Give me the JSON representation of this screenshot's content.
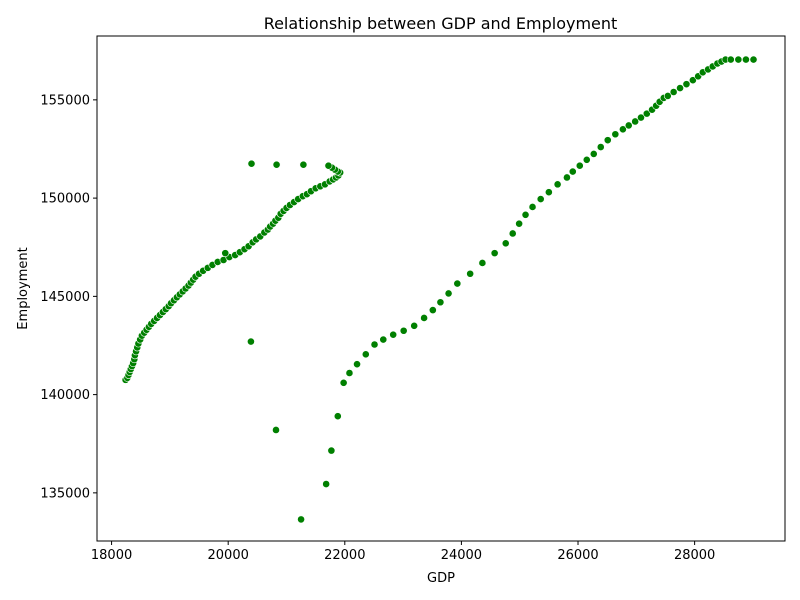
{
  "chart_data": {
    "type": "scatter",
    "title": "Relationship between GDP and Employment",
    "xlabel": "GDP",
    "ylabel": "Employment",
    "xlim": [
      17750,
      29550
    ],
    "ylim": [
      132550,
      158250
    ],
    "xticks": [
      18000,
      20000,
      22000,
      24000,
      26000,
      28000
    ],
    "xtick_labels": [
      "18000",
      "20000",
      "22000",
      "24000",
      "26000",
      "28000"
    ],
    "yticks": [
      135000,
      140000,
      145000,
      150000,
      155000
    ],
    "ytick_labels": [
      "135000",
      "140000",
      "145000",
      "150000",
      "155000"
    ],
    "grid": false,
    "marker_color": "#008000",
    "points": [
      [
        18240,
        140750
      ],
      [
        18270,
        140850
      ],
      [
        18290,
        141000
      ],
      [
        18310,
        141150
      ],
      [
        18330,
        141300
      ],
      [
        18350,
        141450
      ],
      [
        18370,
        141600
      ],
      [
        18390,
        141800
      ],
      [
        18400,
        142000
      ],
      [
        18420,
        142200
      ],
      [
        18440,
        142400
      ],
      [
        18460,
        142600
      ],
      [
        18490,
        142800
      ],
      [
        18520,
        143000
      ],
      [
        18560,
        143150
      ],
      [
        18600,
        143300
      ],
      [
        18640,
        143450
      ],
      [
        18680,
        143600
      ],
      [
        18730,
        143750
      ],
      [
        18780,
        143900
      ],
      [
        18830,
        144050
      ],
      [
        18880,
        144200
      ],
      [
        18930,
        144350
      ],
      [
        18980,
        144500
      ],
      [
        19020,
        144650
      ],
      [
        19070,
        144800
      ],
      [
        19120,
        144950
      ],
      [
        19170,
        145100
      ],
      [
        19220,
        145250
      ],
      [
        19270,
        145400
      ],
      [
        19320,
        145550
      ],
      [
        19360,
        145700
      ],
      [
        19400,
        145850
      ],
      [
        19440,
        146000
      ],
      [
        19500,
        146150
      ],
      [
        19570,
        146300
      ],
      [
        19650,
        146450
      ],
      [
        19730,
        146600
      ],
      [
        19820,
        146750
      ],
      [
        19920,
        146850
      ],
      [
        20020,
        147000
      ],
      [
        20120,
        147100
      ],
      [
        20200,
        147250
      ],
      [
        20280,
        147400
      ],
      [
        20350,
        147550
      ],
      [
        20420,
        147750
      ],
      [
        20480,
        147900
      ],
      [
        20550,
        148050
      ],
      [
        20620,
        148250
      ],
      [
        20680,
        148400
      ],
      [
        20720,
        148550
      ],
      [
        20770,
        148700
      ],
      [
        20810,
        148850
      ],
      [
        20860,
        149000
      ],
      [
        20900,
        149200
      ],
      [
        20950,
        149350
      ],
      [
        21000,
        149500
      ],
      [
        21060,
        149650
      ],
      [
        21130,
        149800
      ],
      [
        21200,
        149950
      ],
      [
        21280,
        150100
      ],
      [
        21350,
        150200
      ],
      [
        21420,
        150350
      ],
      [
        21500,
        150500
      ],
      [
        21580,
        150600
      ],
      [
        21660,
        150700
      ],
      [
        21740,
        150850
      ],
      [
        21800,
        150950
      ],
      [
        21850,
        151050
      ],
      [
        21890,
        151150
      ],
      [
        21920,
        151300
      ],
      [
        21880,
        151350
      ],
      [
        21830,
        151450
      ],
      [
        21780,
        151550
      ],
      [
        19950,
        147200
      ],
      [
        20400,
        151750
      ],
      [
        20830,
        151700
      ],
      [
        21290,
        151700
      ],
      [
        21720,
        151650
      ],
      [
        20390,
        142700
      ],
      [
        20820,
        138200
      ],
      [
        21250,
        133650
      ],
      [
        21680,
        135450
      ],
      [
        21770,
        137150
      ],
      [
        21880,
        138900
      ],
      [
        21980,
        140600
      ],
      [
        22080,
        141100
      ],
      [
        22210,
        141550
      ],
      [
        22360,
        142050
      ],
      [
        22510,
        142550
      ],
      [
        22660,
        142800
      ],
      [
        22830,
        143050
      ],
      [
        23010,
        143250
      ],
      [
        23190,
        143500
      ],
      [
        23360,
        143900
      ],
      [
        23510,
        144300
      ],
      [
        23640,
        144700
      ],
      [
        23780,
        145150
      ],
      [
        23930,
        145650
      ],
      [
        24150,
        146150
      ],
      [
        24360,
        146700
      ],
      [
        24570,
        147200
      ],
      [
        24760,
        147700
      ],
      [
        24880,
        148200
      ],
      [
        24990,
        148700
      ],
      [
        25100,
        149150
      ],
      [
        25220,
        149550
      ],
      [
        25360,
        149950
      ],
      [
        25500,
        150300
      ],
      [
        25650,
        150700
      ],
      [
        25810,
        151050
      ],
      [
        25910,
        151350
      ],
      [
        26030,
        151650
      ],
      [
        26150,
        151950
      ],
      [
        26270,
        152250
      ],
      [
        26390,
        152600
      ],
      [
        26510,
        152950
      ],
      [
        26640,
        153250
      ],
      [
        26770,
        153500
      ],
      [
        26870,
        153700
      ],
      [
        26980,
        153900
      ],
      [
        27080,
        154100
      ],
      [
        27180,
        154300
      ],
      [
        27270,
        154500
      ],
      [
        27340,
        154700
      ],
      [
        27400,
        154900
      ],
      [
        27470,
        155100
      ],
      [
        27540,
        155200
      ],
      [
        27640,
        155400
      ],
      [
        27750,
        155600
      ],
      [
        27860,
        155800
      ],
      [
        27970,
        156000
      ],
      [
        28060,
        156200
      ],
      [
        28140,
        156400
      ],
      [
        28230,
        156550
      ],
      [
        28310,
        156700
      ],
      [
        28390,
        156850
      ],
      [
        28460,
        156950
      ],
      [
        28530,
        157050
      ],
      [
        28620,
        157050
      ],
      [
        28750,
        157050
      ],
      [
        28880,
        157050
      ],
      [
        29010,
        157050
      ]
    ]
  }
}
